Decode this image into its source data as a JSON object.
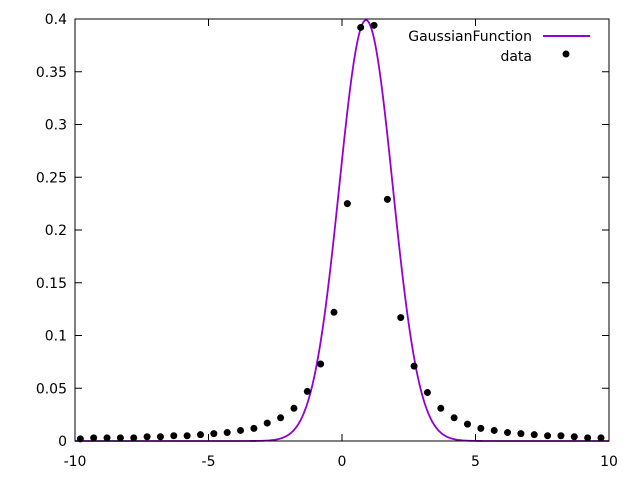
{
  "chart_data": {
    "type": "line",
    "title": "",
    "xlabel": "",
    "ylabel": "",
    "xlim": [
      -10,
      10
    ],
    "ylim": [
      0,
      0.4
    ],
    "x_ticks": [
      "-10",
      "-5",
      "0",
      "5",
      "10"
    ],
    "y_ticks": [
      "0",
      "0.05",
      "0.1",
      "0.15",
      "0.2",
      "0.25",
      "0.3",
      "0.35",
      "0.4"
    ],
    "grid": false,
    "legend_position": "top-right",
    "series": [
      {
        "name": "GaussianFunction",
        "kind": "line",
        "color": "#9400d3",
        "function": {
          "mean": 0.9,
          "sigma": 1.0
        }
      },
      {
        "name": "data",
        "kind": "points",
        "color": "#000000",
        "x": [
          -9.8,
          -9.3,
          -8.8,
          -8.3,
          -7.8,
          -7.3,
          -6.8,
          -6.3,
          -5.8,
          -5.3,
          -4.8,
          -4.3,
          -3.8,
          -3.3,
          -2.8,
          -2.3,
          -1.8,
          -1.3,
          -0.8,
          -0.3,
          0.2,
          0.7,
          1.2,
          1.7,
          2.2,
          2.7,
          3.2,
          3.7,
          4.2,
          4.7,
          5.2,
          5.7,
          6.2,
          6.7,
          7.2,
          7.7,
          8.2,
          8.7,
          9.2,
          9.7
        ],
        "y": [
          0.002,
          0.003,
          0.003,
          0.003,
          0.003,
          0.004,
          0.004,
          0.005,
          0.005,
          0.006,
          0.007,
          0.008,
          0.01,
          0.012,
          0.017,
          0.022,
          0.031,
          0.047,
          0.073,
          0.122,
          0.225,
          0.392,
          0.394,
          0.229,
          0.117,
          0.071,
          0.046,
          0.031,
          0.022,
          0.016,
          0.012,
          0.01,
          0.008,
          0.007,
          0.006,
          0.005,
          0.005,
          0.004,
          0.003,
          0.003
        ]
      }
    ]
  }
}
